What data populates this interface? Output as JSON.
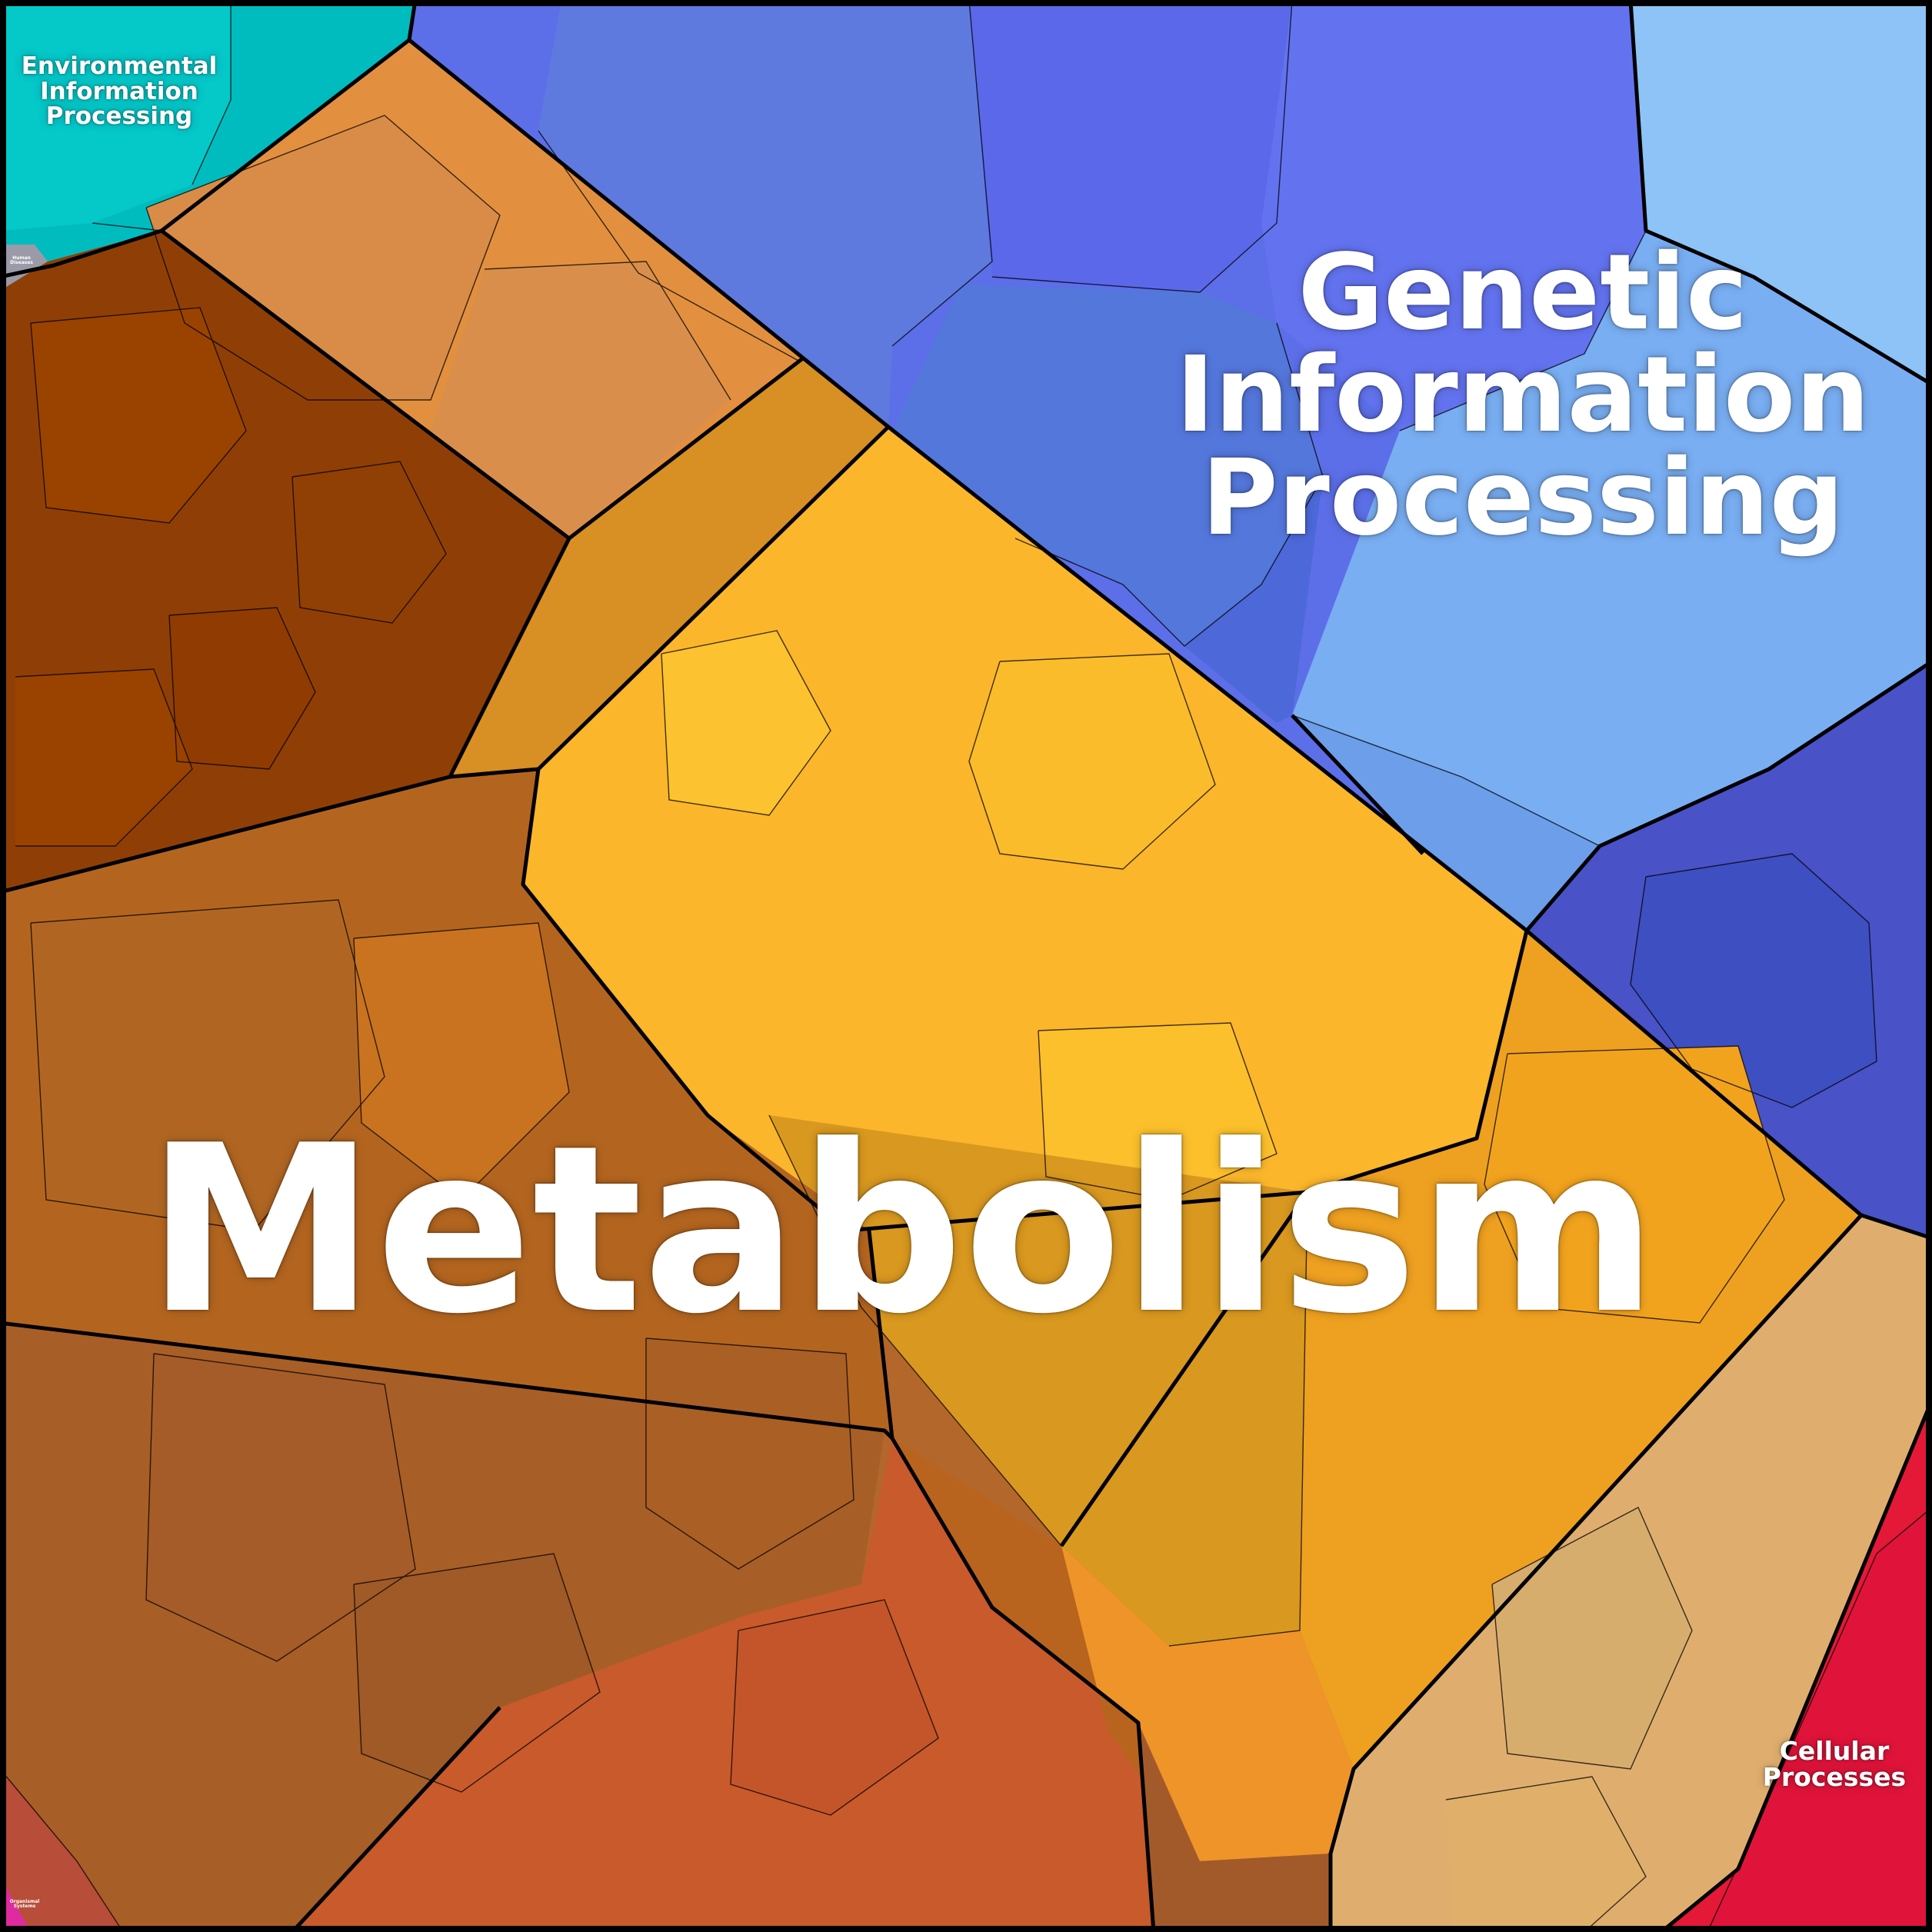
{
  "labels": {
    "metabolism": "Metabolism",
    "genetic": [
      "Genetic",
      "Information",
      "Processing"
    ],
    "environmental": [
      "Environmental",
      "Information",
      "Processing"
    ],
    "cellular": [
      "Cellular",
      "Processes"
    ],
    "human_diseases": [
      "Human",
      "Diseases"
    ],
    "organismal": [
      "Organismal",
      "Systems"
    ]
  },
  "colors": {
    "environmental": "#00c2c4",
    "genetic_blue": "#5c6fe8",
    "genetic_light": "#7ab0f2",
    "genetic_dark": "#4a50c8",
    "metabolism_brown": "#b8681f",
    "metabolism_darkbrown": "#8f3f06",
    "metabolism_orange": "#e89440",
    "metabolism_yellow": "#fbb82b",
    "metabolism_amber": "#e9a129",
    "metabolism_tan": "#e1ae6c",
    "metabolism_red": "#c85a2c",
    "cellular": "#e0143a",
    "organismal": "#e02aa0",
    "human_diseases": "#9a9aa8",
    "border": "#000000"
  }
}
